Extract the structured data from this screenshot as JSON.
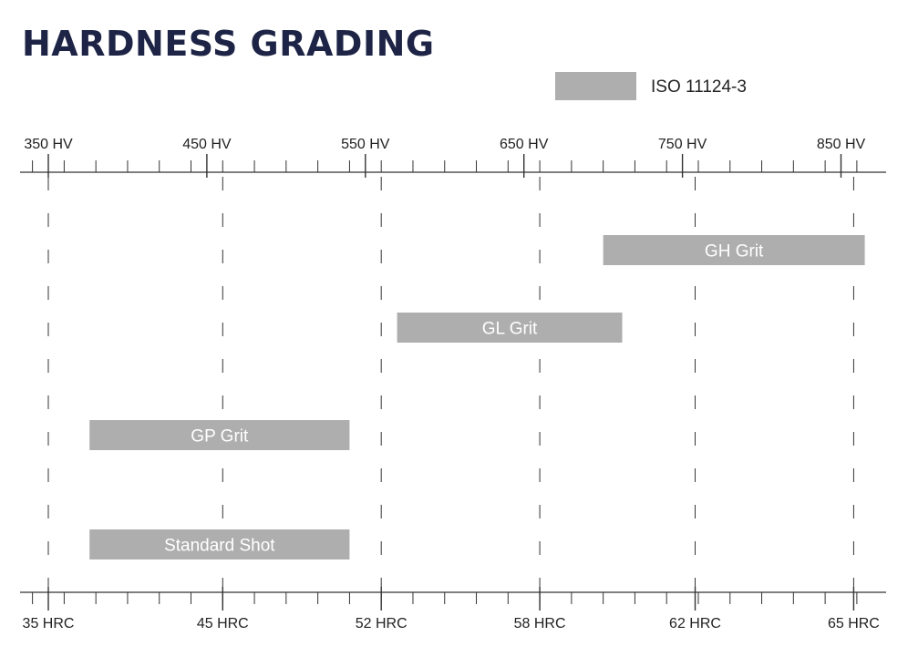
{
  "title": "HARDNESS GRADING",
  "legend": {
    "label": "ISO 11124-3",
    "color": "#aeaeae"
  },
  "chart_data": {
    "type": "bar",
    "orientation": "horizontal-range",
    "title": "HARDNESS GRADING",
    "top_axis": {
      "unit": "HV",
      "range": [
        350,
        850
      ],
      "ticks": [
        {
          "label": "350 HV",
          "value": 350
        },
        {
          "label": "450 HV",
          "value": 450
        },
        {
          "label": "550 HV",
          "value": 550
        },
        {
          "label": "650 HV",
          "value": 650
        },
        {
          "label": "750 HV",
          "value": 750
        },
        {
          "label": "850 HV",
          "value": 850
        }
      ]
    },
    "bottom_axis": {
      "unit": "HRC",
      "ticks": [
        {
          "label": "35 HRC",
          "hv": 350
        },
        {
          "label": "45 HRC",
          "hv": 460
        },
        {
          "label": "52 HRC",
          "hv": 560
        },
        {
          "label": "58 HRC",
          "hv": 660
        },
        {
          "label": "62 HRC",
          "hv": 758
        },
        {
          "label": "65 HRC",
          "hv": 858
        }
      ]
    },
    "series": [
      {
        "name": "ISO 11124-3",
        "color": "#aeaeae"
      }
    ],
    "bars": [
      {
        "label": "GH Grit",
        "hv_min": 700,
        "hv_max": 865
      },
      {
        "label": "GL Grit",
        "hv_min": 570,
        "hv_max": 712
      },
      {
        "label": "GP Grit",
        "hv_min": 376,
        "hv_max": 540
      },
      {
        "label": "Standard Shot",
        "hv_min": 376,
        "hv_max": 540
      }
    ],
    "grid": true,
    "legend_position": "top-right"
  }
}
